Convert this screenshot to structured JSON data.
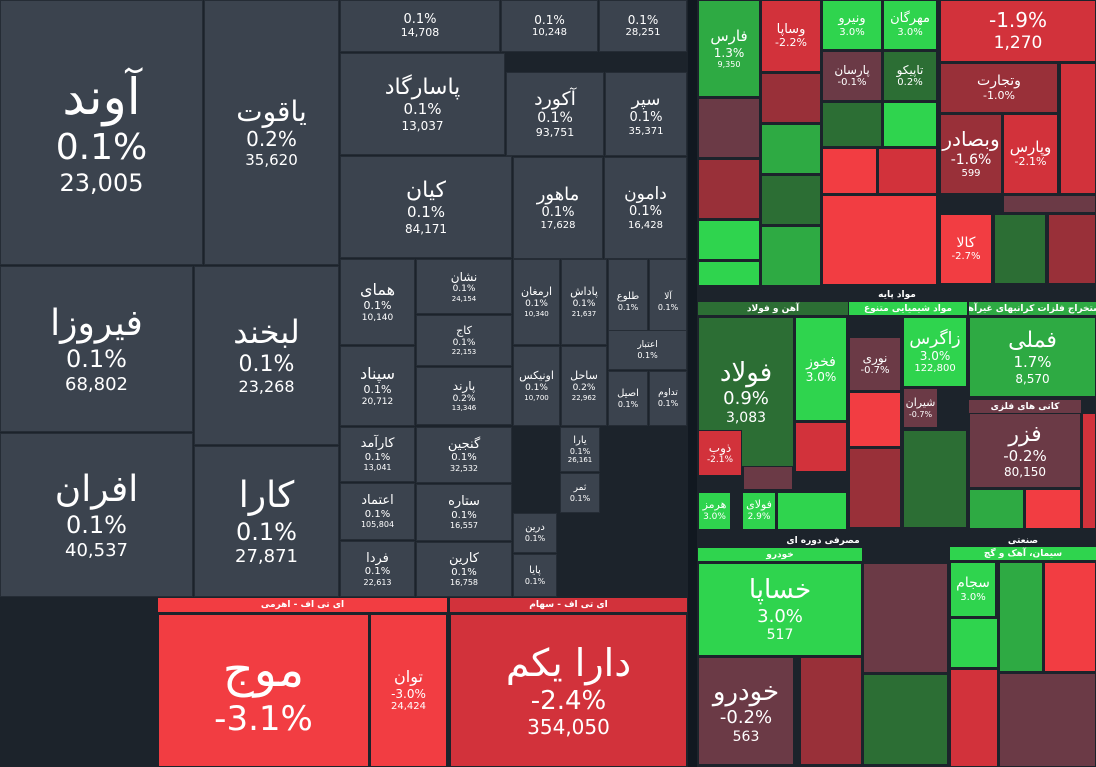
{
  "colors": {
    "neutral": "#3b434e",
    "neutral_border": "#252c35",
    "green_light": "#2fd44e",
    "green": "#2eaa43",
    "green_dark": "#2c6e34",
    "red_light": "#f23d42",
    "red": "#d2323b",
    "red_dark": "#993039",
    "mauve": "#6b3a46",
    "background": "#1c232b"
  },
  "chart_data": {
    "type": "treemap",
    "unit_value": "value",
    "tiles": [
      {
        "name": "آوند",
        "change": "0.1%",
        "value": "23,005",
        "color": "neutral"
      },
      {
        "name": "یاقوت",
        "change": "0.2%",
        "value": "35,620",
        "color": "neutral"
      },
      {
        "name": "",
        "change": "0.1%",
        "value": "14,708",
        "color": "neutral"
      },
      {
        "name": "",
        "change": "0.1%",
        "value": "10,248",
        "color": "neutral"
      },
      {
        "name": "",
        "change": "0.1%",
        "value": "28,251",
        "color": "neutral"
      },
      {
        "name": "پاسارگاد",
        "change": "0.1%",
        "value": "13,037",
        "color": "neutral"
      },
      {
        "name": "آکورد",
        "change": "0.1%",
        "value": "93,751",
        "color": "neutral"
      },
      {
        "name": "سپر",
        "change": "0.1%",
        "value": "35,371",
        "color": "neutral"
      },
      {
        "name": "کیان",
        "change": "0.1%",
        "value": "84,171",
        "color": "neutral"
      },
      {
        "name": "ماهور",
        "change": "0.1%",
        "value": "17,628",
        "color": "neutral"
      },
      {
        "name": "دامون",
        "change": "0.1%",
        "value": "16,428",
        "color": "neutral"
      },
      {
        "name": "فیروزا",
        "change": "0.1%",
        "value": "68,802",
        "color": "neutral"
      },
      {
        "name": "لبخند",
        "change": "0.1%",
        "value": "23,268",
        "color": "neutral"
      },
      {
        "name": "همای",
        "change": "0.1%",
        "value": "10,140",
        "color": "neutral"
      },
      {
        "name": "نشان",
        "change": "0.1%",
        "value": "24,154",
        "color": "neutral"
      },
      {
        "name": "ارمغان",
        "change": "0.1%",
        "value": "10,340",
        "color": "neutral"
      },
      {
        "name": "پاداش",
        "change": "0.1%",
        "value": "21,637",
        "color": "neutral"
      },
      {
        "name": "طلوع",
        "change": "0.1%",
        "value": "",
        "color": "neutral"
      },
      {
        "name": "آلا",
        "change": "0.1%",
        "value": "",
        "color": "neutral"
      },
      {
        "name": "کاج",
        "change": "0.1%",
        "value": "22,153",
        "color": "neutral"
      },
      {
        "name": "اعتبار",
        "change": "0.1%",
        "value": "",
        "color": "neutral"
      },
      {
        "name": "سپناد",
        "change": "0.1%",
        "value": "20,712",
        "color": "neutral"
      },
      {
        "name": "پارند",
        "change": "0.2%",
        "value": "13,346",
        "color": "neutral"
      },
      {
        "name": "اونیکس",
        "change": "0.1%",
        "value": "10,700",
        "color": "neutral"
      },
      {
        "name": "ساحل",
        "change": "0.2%",
        "value": "22,962",
        "color": "neutral"
      },
      {
        "name": "اصیل",
        "change": "0.1%",
        "value": "",
        "color": "neutral"
      },
      {
        "name": "تداوم",
        "change": "0.1%",
        "value": "",
        "color": "neutral"
      },
      {
        "name": "افران",
        "change": "0.1%",
        "value": "40,537",
        "color": "neutral"
      },
      {
        "name": "کارا",
        "change": "0.1%",
        "value": "27,871",
        "color": "neutral"
      },
      {
        "name": "کارآمد",
        "change": "0.1%",
        "value": "13,041",
        "color": "neutral"
      },
      {
        "name": "گنجین",
        "change": "0.1%",
        "value": "32,532",
        "color": "neutral"
      },
      {
        "name": "یارا",
        "change": "0.1%",
        "value": "26,161",
        "color": "neutral"
      },
      {
        "name": "اعتماد",
        "change": "0.1%",
        "value": "105,804",
        "color": "neutral"
      },
      {
        "name": "ستاره",
        "change": "0.1%",
        "value": "16,557",
        "color": "neutral"
      },
      {
        "name": "ثمر",
        "change": "0.1%",
        "value": "",
        "color": "neutral"
      },
      {
        "name": "فردا",
        "change": "0.1%",
        "value": "22,613",
        "color": "neutral"
      },
      {
        "name": "کارین",
        "change": "0.1%",
        "value": "16,758",
        "color": "neutral"
      },
      {
        "name": "درین",
        "change": "0.1%",
        "value": "",
        "color": "neutral"
      },
      {
        "name": "پایا",
        "change": "0.1%",
        "value": "",
        "color": "neutral"
      },
      {
        "name": "موج",
        "change": "-3.1%",
        "value": "",
        "color": "red_light",
        "group": "ای تی اف - اهرمی"
      },
      {
        "name": "توان",
        "change": "-3.0%",
        "value": "24,424",
        "color": "red_light",
        "group": "ای تی اف - اهرمی"
      },
      {
        "name": "دارا یکم",
        "change": "-2.4%",
        "value": "354,050",
        "color": "red",
        "group": "ای تی اف - سهام"
      },
      {
        "name": "",
        "change": "-1.9%",
        "value": "1,270",
        "color": "red"
      },
      {
        "name": "فارس",
        "change": "1.3%",
        "value": "9,350",
        "color": "green"
      },
      {
        "name": "وساپا",
        "change": "-2.2%",
        "value": "",
        "color": "red"
      },
      {
        "name": "ونیرو",
        "change": "3.0%",
        "value": "",
        "color": "green_light"
      },
      {
        "name": "مهرگان",
        "change": "3.0%",
        "value": "",
        "color": "green_light"
      },
      {
        "name": "پارسان",
        "change": "-0.1%",
        "value": "",
        "color": "mauve"
      },
      {
        "name": "تاپیکو",
        "change": "0.2%",
        "value": "",
        "color": "green_dark"
      },
      {
        "name": "وتجارت",
        "change": "-1.0%",
        "value": "",
        "color": "red_dark"
      },
      {
        "name": "وبصادر",
        "change": "-1.6%",
        "value": "599",
        "color": "red_dark"
      },
      {
        "name": "وپارس",
        "change": "-2.1%",
        "value": "",
        "color": "red"
      },
      {
        "name": "کالا",
        "change": "-2.7%",
        "value": "",
        "color": "red_light"
      },
      {
        "name": "فولاد",
        "change": "0.9%",
        "value": "3,083",
        "color": "green_dark",
        "group": "آهن و فولاد"
      },
      {
        "name": "فخوز",
        "change": "3.0%",
        "value": "",
        "color": "green_light"
      },
      {
        "name": "زاگرس",
        "change": "3.0%",
        "value": "122,800",
        "color": "green_light",
        "group": "مواد شیمیایی متنوع"
      },
      {
        "name": "نوری",
        "change": "-0.7%",
        "value": "",
        "color": "mauve"
      },
      {
        "name": "شیران",
        "change": "-0.7%",
        "value": "",
        "color": "mauve"
      },
      {
        "name": "فملی",
        "change": "1.7%",
        "value": "8,570",
        "color": "green",
        "group": "استخراج فلزات کرانبهای غیرآهن"
      },
      {
        "name": "فزر",
        "change": "-0.2%",
        "value": "80,150",
        "color": "mauve",
        "group": "کانی های فلزی"
      },
      {
        "name": "ذوب",
        "change": "-2.1%",
        "value": "",
        "color": "red"
      },
      {
        "name": "هرمز",
        "change": "3.0%",
        "value": "",
        "color": "green_light"
      },
      {
        "name": "فولای",
        "change": "2.9%",
        "value": "",
        "color": "green_light"
      },
      {
        "name": "خساپا",
        "change": "3.0%",
        "value": "517",
        "color": "green_light",
        "group": "خودرو"
      },
      {
        "name": "خودرو",
        "change": "-0.2%",
        "value": "563",
        "color": "mauve"
      },
      {
        "name": "سجام",
        "change": "3.0%",
        "value": "",
        "color": "green_light",
        "group": "سیمان، آهک و گچ"
      }
    ],
    "sector_labels": [
      "مواد پایه",
      "مصرفی دوره ای",
      "صنعتی"
    ]
  }
}
